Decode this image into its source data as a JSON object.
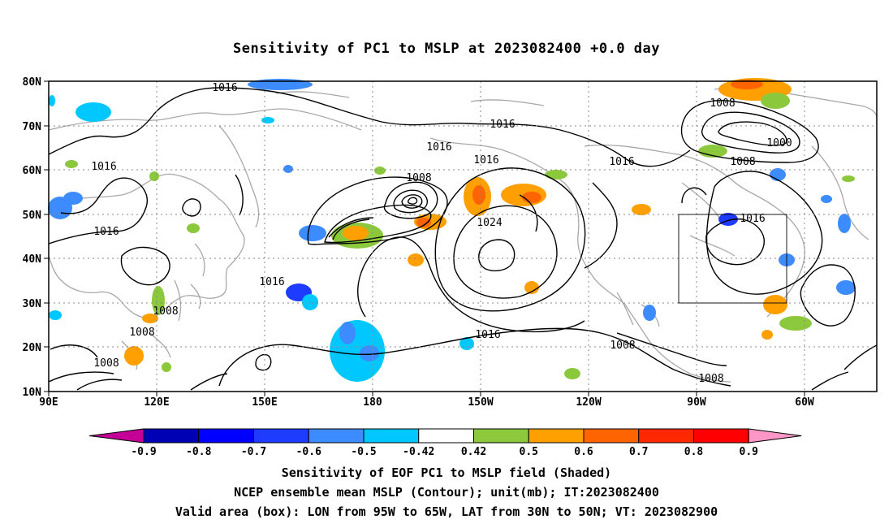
{
  "title": "Sensitivity of PC1 to MSLP at 2023082400 +0.0 day",
  "lat_labels": [
    "80N",
    "70N",
    "60N",
    "50N",
    "40N",
    "30N",
    "20N",
    "10N"
  ],
  "lon_labels": [
    "90E",
    "120E",
    "150E",
    "180",
    "150W",
    "120W",
    "90W",
    "60W"
  ],
  "contour_labels": [
    "1016",
    "1016",
    "1016",
    "1016",
    "1016",
    "1016",
    "1016",
    "1016",
    "1016",
    "1016",
    "1008",
    "1008",
    "1008",
    "1008",
    "1008",
    "1008",
    "1008",
    "1008",
    "1024",
    "1000"
  ],
  "colorbar": {
    "ticks": [
      "-0.9",
      "-0.8",
      "-0.7",
      "-0.6",
      "-0.5",
      "-0.42",
      "0.42",
      "0.5",
      "0.6",
      "0.7",
      "0.8",
      "0.9"
    ],
    "colors": [
      "#c40096",
      "#0000b4",
      "#0000ff",
      "#1e3cff",
      "#3c8cff",
      "#00c8ff",
      "#ffffff",
      "#8cc83c",
      "#ffa000",
      "#ff6400",
      "#ff2800",
      "#ff0000",
      "#ff96c8"
    ]
  },
  "valid_box": {
    "lon_from": "95W",
    "lon_to": "65W",
    "lat_from": "30N",
    "lat_to": "50N"
  },
  "captions": [
    "Sensitivity of EOF PC1 to MSLP field (Shaded)",
    "NCEP ensemble mean MSLP (Contour); unit(mb); IT:2023082400",
    "Valid area (box): LON from 95W to 65W, LAT from 30N to 50N; VT: 2023082900"
  ]
}
